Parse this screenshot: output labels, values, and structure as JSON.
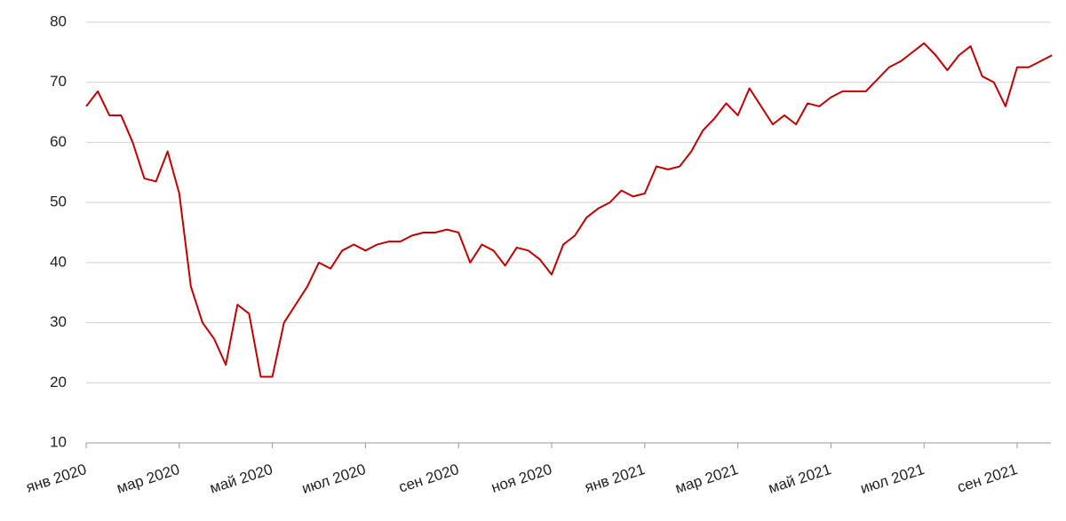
{
  "chart_data": {
    "type": "line",
    "categories": [
      "янв 2020",
      null,
      null,
      null,
      null,
      null,
      null,
      null,
      "мар 2020",
      null,
      null,
      null,
      null,
      null,
      null,
      null,
      "май 2020",
      null,
      null,
      null,
      null,
      null,
      null,
      null,
      "июл 2020",
      null,
      null,
      null,
      null,
      null,
      null,
      null,
      "сен 2020",
      null,
      null,
      null,
      null,
      null,
      null,
      null,
      "ноя 2020",
      null,
      null,
      null,
      null,
      null,
      null,
      null,
      "янв 2021",
      null,
      null,
      null,
      null,
      null,
      null,
      null,
      "мар 2021",
      null,
      null,
      null,
      null,
      null,
      null,
      null,
      "май 2021",
      null,
      null,
      null,
      null,
      null,
      null,
      null,
      "июл 2021",
      null,
      null,
      null,
      null,
      null,
      null,
      null,
      "сен 2021",
      null,
      null,
      null
    ],
    "values": [
      66,
      68.5,
      64.5,
      64.5,
      60,
      54,
      53.5,
      58.5,
      51.5,
      36,
      30,
      27.3,
      23,
      33,
      31.5,
      21,
      21,
      30,
      33,
      36,
      40,
      39,
      42,
      43,
      42,
      43,
      43.5,
      43.5,
      44.5,
      45,
      45,
      45.5,
      45,
      40,
      43,
      42,
      39.5,
      42.5,
      42,
      40.5,
      38,
      43,
      44.5,
      47.5,
      49,
      50,
      52,
      51,
      51.5,
      56,
      55.5,
      56,
      58.5,
      62,
      64,
      66.5,
      64.5,
      69,
      66,
      63,
      64.5,
      63,
      66.5,
      66,
      67.5,
      68.5,
      68.5,
      68.5,
      70.5,
      72.5,
      73.5,
      75,
      76.5,
      74.5,
      72,
      74.5,
      76,
      71,
      70,
      66,
      72.5,
      72.5,
      73.5,
      74.5
    ],
    "color": "#c00000",
    "ylim": [
      10,
      80
    ],
    "yticks": [
      10,
      20,
      30,
      40,
      50,
      60,
      70,
      80
    ],
    "grid": true
  }
}
